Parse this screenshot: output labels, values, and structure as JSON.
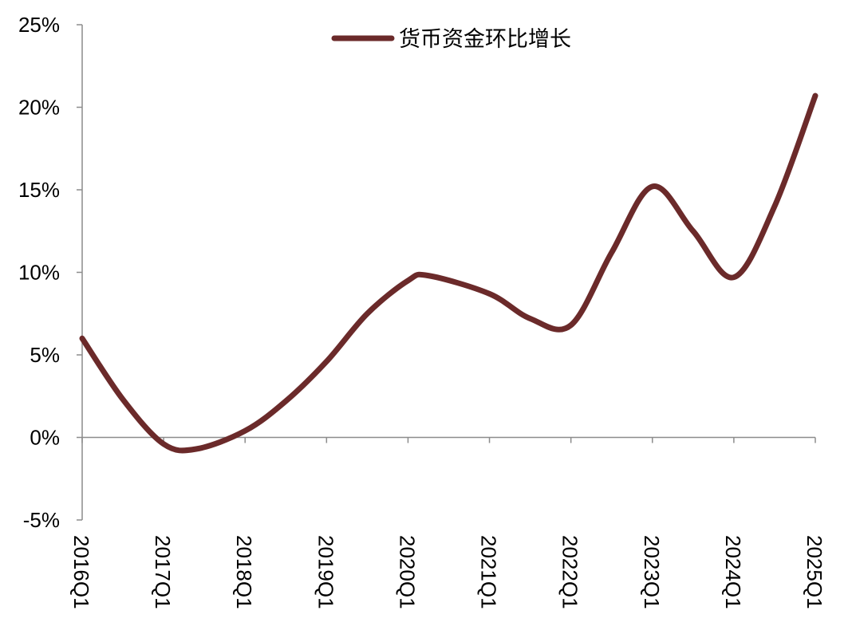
{
  "chart_data": {
    "type": "line",
    "title": "",
    "xlabel": "",
    "ylabel": "",
    "categories": [
      "2016Q1",
      "2017Q1",
      "2018Q1",
      "2019Q1",
      "2020Q1",
      "2021Q1",
      "2022Q1",
      "2023Q1",
      "2024Q1",
      "2025Q1"
    ],
    "ylim": [
      -5,
      25
    ],
    "yticks": [
      -5,
      0,
      5,
      10,
      15,
      20,
      25
    ],
    "ytick_labels": [
      "-5%",
      "0%",
      "5%",
      "10%",
      "15%",
      "20%",
      "25%"
    ],
    "grid": false,
    "smooth": true,
    "legend_position": "top-center",
    "series": [
      {
        "name": "货币资金环比增长",
        "color": "#6b2a2a",
        "points": [
          {
            "x": 0.0,
            "y": 6.0
          },
          {
            "x": 0.5,
            "y": 2.3
          },
          {
            "x": 1.0,
            "y": -0.4
          },
          {
            "x": 1.4,
            "y": -0.7
          },
          {
            "x": 2.0,
            "y": 0.4
          },
          {
            "x": 2.5,
            "y": 2.2
          },
          {
            "x": 3.0,
            "y": 4.6
          },
          {
            "x": 3.5,
            "y": 7.5
          },
          {
            "x": 4.0,
            "y": 9.5
          },
          {
            "x": 4.25,
            "y": 9.8
          },
          {
            "x": 5.0,
            "y": 8.7
          },
          {
            "x": 5.5,
            "y": 7.2
          },
          {
            "x": 6.0,
            "y": 6.8
          },
          {
            "x": 6.5,
            "y": 11.2
          },
          {
            "x": 7.0,
            "y": 15.2
          },
          {
            "x": 7.5,
            "y": 12.5
          },
          {
            "x": 8.0,
            "y": 9.7
          },
          {
            "x": 8.5,
            "y": 14.0
          },
          {
            "x": 9.0,
            "y": 20.7
          }
        ]
      }
    ]
  }
}
